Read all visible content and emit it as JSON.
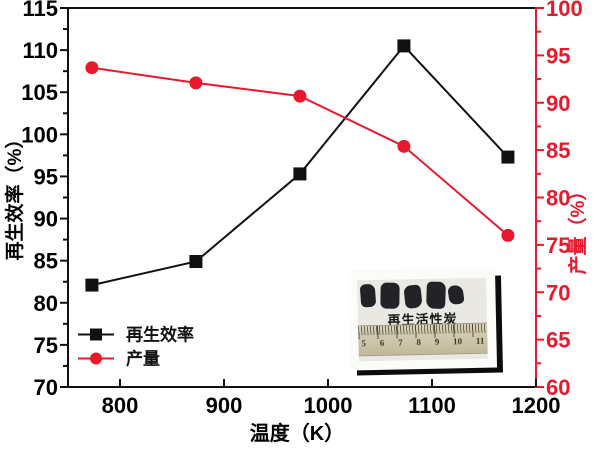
{
  "chart_data": {
    "type": "line",
    "x": [
      773,
      873,
      973,
      1073,
      1173
    ],
    "x_axis": {
      "label": "温度（K）",
      "range": [
        750,
        1200
      ],
      "major_ticks": [
        800,
        900,
        1000,
        1100,
        1200
      ]
    },
    "left_axis": {
      "label": "再生效率（%）",
      "range": [
        70,
        115
      ],
      "major_step": 5,
      "minor_step": 2.5,
      "color": "#111111"
    },
    "right_axis": {
      "label": "产量（%）",
      "range": [
        60,
        100
      ],
      "major_step": 5,
      "minor_step": 2.5,
      "color": "#e8192c"
    },
    "series": [
      {
        "name": "再生效率",
        "axis": "left",
        "marker": "square",
        "color": "#111111",
        "values": [
          82.1,
          84.9,
          95.3,
          110.5,
          97.3
        ]
      },
      {
        "name": "产量",
        "axis": "right",
        "marker": "circle",
        "color": "#e8192c",
        "values": [
          93.7,
          92.1,
          90.7,
          85.4,
          76.0
        ]
      }
    ],
    "legend": {
      "position": "lower-left"
    },
    "grid": false
  },
  "inset": {
    "caption": "再生活性炭",
    "ruler_numbers": [
      "5",
      "6",
      "7",
      "8",
      "9",
      "10",
      "11"
    ],
    "pieces_count": 5
  }
}
